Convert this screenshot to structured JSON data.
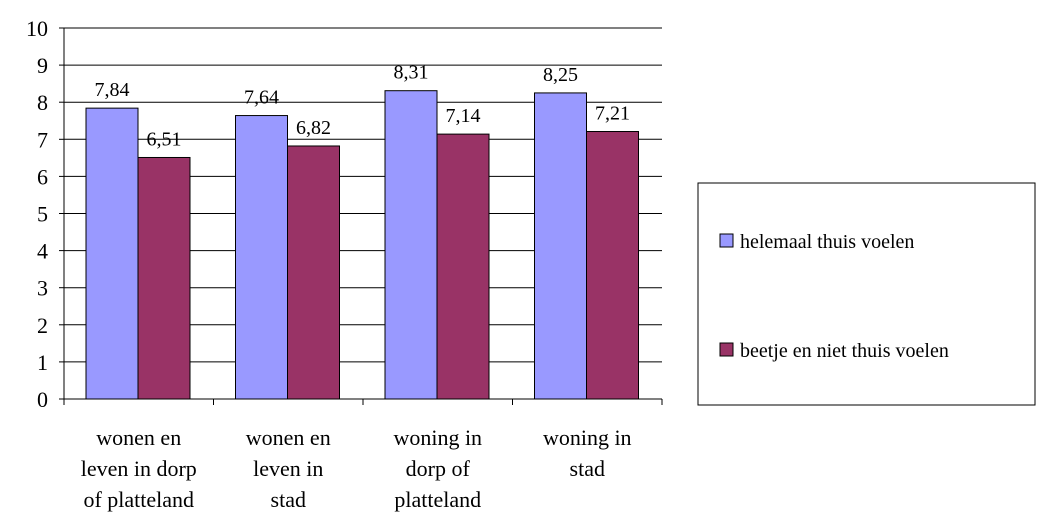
{
  "chart_data": {
    "type": "bar",
    "title": "",
    "xlabel": "",
    "ylabel": "",
    "ylim": [
      0,
      10
    ],
    "yticks": [
      0,
      1,
      2,
      3,
      4,
      5,
      6,
      7,
      8,
      9,
      10
    ],
    "grid": true,
    "legend_position": "right",
    "categories": [
      [
        "wonen en",
        "leven in dorp",
        "of platteland"
      ],
      [
        "wonen en",
        "leven in",
        "stad"
      ],
      [
        "woning in",
        "dorp of",
        "platteland"
      ],
      [
        "woning in",
        "stad"
      ]
    ],
    "series": [
      {
        "name": "helemaal thuis voelen",
        "color": "#9999ff",
        "values": [
          7.84,
          7.64,
          8.31,
          8.25
        ],
        "labels": [
          "7,84",
          "7,64",
          "8,31",
          "8,25"
        ]
      },
      {
        "name": "beetje en niet thuis voelen",
        "color": "#993366",
        "values": [
          6.51,
          6.82,
          7.14,
          7.21
        ],
        "labels": [
          "6,51",
          "6,82",
          "7,14",
          "7,21"
        ]
      }
    ]
  }
}
